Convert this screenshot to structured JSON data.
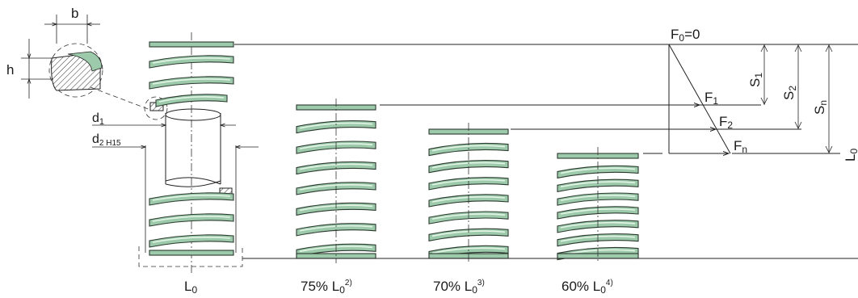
{
  "colors": {
    "spring_green": "#9ccaaa",
    "spring_highlight": "#c6e6cf",
    "line": "#222222"
  },
  "cross_section": {
    "b": "b",
    "h": "h"
  },
  "rod": {
    "d1": "d",
    "d1_sub": "1",
    "d2": "d",
    "d2_sub": "2 H15"
  },
  "springs": [
    {
      "label": "L",
      "sub": "0",
      "sup": "",
      "pct": ""
    },
    {
      "label": "75% L",
      "sub": "0",
      "sup": "2)",
      "pct": "75%"
    },
    {
      "label": "70% L",
      "sub": "0",
      "sup": "3)",
      "pct": "70%"
    },
    {
      "label": "60% L",
      "sub": "0",
      "sup": "4)",
      "pct": "60%"
    }
  ],
  "force_diagram": {
    "f0": "F",
    "f0_sub": "0",
    "f0_eq": "=0",
    "f1": "F",
    "f1_sub": "1",
    "f2": "F",
    "f2_sub": "2",
    "fn": "F",
    "fn_sub": "n",
    "s1": "S",
    "s1_sub": "1",
    "s2": "S",
    "s2_sub": "2",
    "sn": "S",
    "sn_sub": "n",
    "l0": "L",
    "l0_sub": "0"
  }
}
